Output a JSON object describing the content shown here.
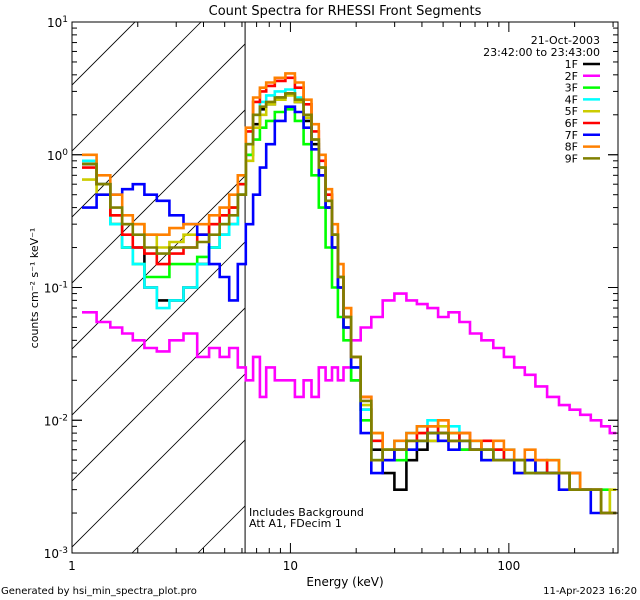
{
  "chart_data": {
    "type": "line",
    "title": "Count Spectra for RHESSI Front Segments",
    "xlabel": "Energy (keV)",
    "ylabel": "counts cm⁻² s⁻¹ keV⁻¹",
    "xscale": "log",
    "yscale": "log",
    "xlim": [
      1,
      316
    ],
    "ylim": [
      0.001,
      10
    ],
    "xticks": [
      {
        "v": 1,
        "label": "1"
      },
      {
        "v": 10,
        "label": "10"
      },
      {
        "v": 100,
        "label": "100"
      }
    ],
    "yticks": [
      {
        "v": 10,
        "base": "10",
        "exp": "1"
      },
      {
        "v": 1,
        "base": "10",
        "exp": "0"
      },
      {
        "v": 0.1,
        "base": "10",
        "exp": "-1"
      },
      {
        "v": 0.01,
        "base": "10",
        "exp": "-2"
      },
      {
        "v": 0.001,
        "base": "10",
        "exp": "-3"
      }
    ],
    "hatched_region_below_keV": 6.2,
    "date": "21-Oct-2003",
    "time_range": "23:42:00 to 23:43:00",
    "annotations": [
      "Includes Background",
      "Att A1, FDecim 1"
    ],
    "legend_position": "top-right",
    "x": [
      1.2,
      1.4,
      1.6,
      1.8,
      2.0,
      2.3,
      2.6,
      3.0,
      3.5,
      4.0,
      4.5,
      5.0,
      5.5,
      6.0,
      6.5,
      7,
      7.5,
      8,
      9,
      10,
      11,
      12,
      13,
      14,
      15,
      16,
      17,
      18,
      20,
      22,
      25,
      28,
      32,
      36,
      40,
      45,
      50,
      56,
      63,
      70,
      80,
      90,
      100,
      112,
      125,
      140,
      160,
      180,
      200,
      225,
      250,
      280,
      300
    ],
    "series": [
      {
        "name": "1F",
        "color": "#000000",
        "values": [
          0.85,
          0.6,
          0.3,
          0.2,
          0.2,
          0.1,
          0.08,
          0.08,
          0.1,
          0.15,
          0.2,
          0.25,
          0.3,
          0.5,
          1.0,
          1.7,
          2.2,
          2.4,
          2.7,
          2.9,
          2.5,
          1.8,
          1.2,
          0.7,
          0.4,
          0.2,
          0.1,
          0.05,
          0.02,
          0.012,
          0.006,
          0.004,
          0.003,
          0.005,
          0.006,
          0.007,
          0.008,
          0.007,
          0.006,
          0.006,
          0.006,
          0.005,
          0.005,
          0.005,
          0.005,
          0.004,
          0.004,
          0.004,
          0.003,
          0.003,
          0.003,
          0.002,
          0.002
        ]
      },
      {
        "name": "2F",
        "color": "#ff00ff",
        "values": [
          0.065,
          0.055,
          0.05,
          0.045,
          0.04,
          0.035,
          0.033,
          0.04,
          0.045,
          0.03,
          0.035,
          0.03,
          0.035,
          0.025,
          0.02,
          0.03,
          0.015,
          0.025,
          0.02,
          0.02,
          0.015,
          0.02,
          0.015,
          0.025,
          0.02,
          0.025,
          0.02,
          0.025,
          0.04,
          0.05,
          0.06,
          0.08,
          0.09,
          0.08,
          0.075,
          0.07,
          0.06,
          0.065,
          0.055,
          0.045,
          0.04,
          0.035,
          0.03,
          0.025,
          0.022,
          0.018,
          0.015,
          0.013,
          0.012,
          0.011,
          0.01,
          0.009,
          0.008
        ]
      },
      {
        "name": "3F",
        "color": "#00ff00",
        "values": [
          0.9,
          0.6,
          0.3,
          0.2,
          0.15,
          0.12,
          0.12,
          0.15,
          0.15,
          0.17,
          0.2,
          0.3,
          0.4,
          0.6,
          1.0,
          1.3,
          1.6,
          1.8,
          2.1,
          2.2,
          1.8,
          1.2,
          0.7,
          0.4,
          0.2,
          0.1,
          0.06,
          0.04,
          0.02,
          0.01,
          0.005,
          0.006,
          0.005,
          0.006,
          0.007,
          0.008,
          0.007,
          0.008,
          0.006,
          0.007,
          0.005,
          0.006,
          0.005,
          0.005,
          0.004,
          0.004,
          0.005,
          0.004,
          0.004,
          0.003,
          0.003,
          0.003,
          0.002
        ]
      },
      {
        "name": "4F",
        "color": "#00ffff",
        "values": [
          0.9,
          0.6,
          0.3,
          0.2,
          0.15,
          0.1,
          0.07,
          0.08,
          0.1,
          0.15,
          0.2,
          0.25,
          0.3,
          0.5,
          1.2,
          2.0,
          2.5,
          2.8,
          3.0,
          3.1,
          2.7,
          2.0,
          1.3,
          0.8,
          0.45,
          0.25,
          0.12,
          0.06,
          0.025,
          0.012,
          0.007,
          0.006,
          0.007,
          0.008,
          0.009,
          0.01,
          0.008,
          0.009,
          0.007,
          0.006,
          0.006,
          0.005,
          0.006,
          0.005,
          0.005,
          0.004,
          0.004,
          0.004,
          0.004,
          0.003,
          0.003,
          0.002,
          0.002
        ]
      },
      {
        "name": "5F",
        "color": "#cccc00",
        "values": [
          0.65,
          0.5,
          0.35,
          0.3,
          0.3,
          0.25,
          0.2,
          0.22,
          0.25,
          0.25,
          0.3,
          0.35,
          0.4,
          0.5,
          0.9,
          1.6,
          2.0,
          2.4,
          2.6,
          2.8,
          2.5,
          1.9,
          1.3,
          0.8,
          0.5,
          0.25,
          0.12,
          0.06,
          0.03,
          0.013,
          0.008,
          0.006,
          0.006,
          0.007,
          0.008,
          0.007,
          0.009,
          0.007,
          0.007,
          0.006,
          0.005,
          0.006,
          0.005,
          0.004,
          0.005,
          0.004,
          0.004,
          0.004,
          0.003,
          0.003,
          0.003,
          0.002,
          0.003
        ]
      },
      {
        "name": "6F",
        "color": "#ff0000",
        "values": [
          0.8,
          0.6,
          0.35,
          0.25,
          0.2,
          0.18,
          0.15,
          0.18,
          0.2,
          0.25,
          0.3,
          0.35,
          0.4,
          0.6,
          1.5,
          2.5,
          3.0,
          3.3,
          3.6,
          3.8,
          3.2,
          2.4,
          1.5,
          0.9,
          0.5,
          0.25,
          0.12,
          0.06,
          0.03,
          0.015,
          0.007,
          0.005,
          0.006,
          0.007,
          0.008,
          0.009,
          0.008,
          0.007,
          0.008,
          0.006,
          0.007,
          0.006,
          0.005,
          0.005,
          0.005,
          0.005,
          0.004,
          0.004,
          0.004,
          0.003,
          0.003,
          0.002,
          0.002
        ]
      },
      {
        "name": "7F",
        "color": "#0000ff",
        "values": [
          0.4,
          0.5,
          0.5,
          0.55,
          0.6,
          0.5,
          0.45,
          0.35,
          0.3,
          0.25,
          0.15,
          0.12,
          0.08,
          0.15,
          0.3,
          0.5,
          0.8,
          1.2,
          1.8,
          2.3,
          2.1,
          1.6,
          1.1,
          0.7,
          0.4,
          0.2,
          0.1,
          0.05,
          0.025,
          0.008,
          0.004,
          0.005,
          0.006,
          0.006,
          0.007,
          0.008,
          0.007,
          0.006,
          0.007,
          0.006,
          0.005,
          0.005,
          0.005,
          0.004,
          0.005,
          0.004,
          0.004,
          0.003,
          0.003,
          0.003,
          0.002,
          0.002,
          0.002
        ]
      },
      {
        "name": "8F",
        "color": "#ff8000",
        "values": [
          1.0,
          0.7,
          0.5,
          0.35,
          0.3,
          0.25,
          0.25,
          0.28,
          0.3,
          0.3,
          0.35,
          0.4,
          0.5,
          0.7,
          1.6,
          2.7,
          3.2,
          3.5,
          3.8,
          4.1,
          3.5,
          2.6,
          1.7,
          1.0,
          0.55,
          0.3,
          0.15,
          0.07,
          0.03,
          0.015,
          0.008,
          0.006,
          0.007,
          0.008,
          0.009,
          0.009,
          0.01,
          0.008,
          0.008,
          0.007,
          0.006,
          0.007,
          0.006,
          0.005,
          0.006,
          0.005,
          0.005,
          0.004,
          0.004,
          0.003,
          0.003,
          0.002,
          0.002
        ]
      },
      {
        "name": "9F",
        "color": "#808000",
        "values": [
          0.85,
          0.6,
          0.4,
          0.3,
          0.25,
          0.2,
          0.18,
          0.2,
          0.2,
          0.22,
          0.25,
          0.3,
          0.35,
          0.5,
          1.2,
          2.0,
          2.3,
          2.5,
          2.7,
          2.9,
          2.6,
          2.0,
          1.3,
          0.8,
          0.45,
          0.25,
          0.12,
          0.06,
          0.03,
          0.014,
          0.005,
          0.006,
          0.006,
          0.007,
          0.007,
          0.008,
          0.008,
          0.007,
          0.007,
          0.006,
          0.006,
          0.005,
          0.005,
          0.005,
          0.004,
          0.004,
          0.004,
          0.004,
          0.003,
          0.003,
          0.003,
          0.002,
          0.002
        ]
      }
    ]
  },
  "footer": {
    "generated_by": "Generated by hsi_min_spectra_plot.pro",
    "timestamp": "11-Apr-2023 16:20"
  }
}
